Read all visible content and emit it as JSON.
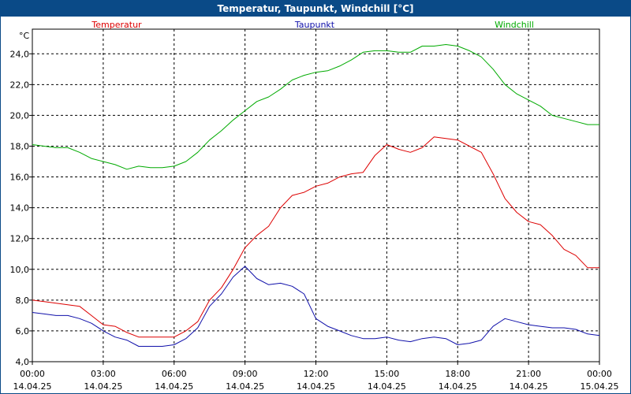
{
  "window": {
    "title": "Temperatur, Taupunkt, Windchill [°C]"
  },
  "chart_data": {
    "type": "line",
    "title": "Temperatur, Taupunkt, Windchill [°C]",
    "ylabel": "°C",
    "xlabel": "",
    "ylim": [
      4,
      25.6
    ],
    "xlim": [
      0,
      24
    ],
    "grid": true,
    "legend_position": "top",
    "y_ticks": [
      4,
      6,
      8,
      10,
      12,
      14,
      16,
      18,
      20,
      22,
      24
    ],
    "y_tick_labels": [
      "4,0",
      "6,0",
      "8,0",
      "10,0",
      "12,0",
      "14,0",
      "16,0",
      "18,0",
      "20,0",
      "22,0",
      "24,0"
    ],
    "x_ticks": [
      0,
      3,
      6,
      9,
      12,
      15,
      18,
      21,
      24
    ],
    "x_tick_labels": [
      {
        "time": "00:00",
        "date": "14.04.25"
      },
      {
        "time": "03:00",
        "date": "14.04.25"
      },
      {
        "time": "06:00",
        "date": "14.04.25"
      },
      {
        "time": "09:00",
        "date": "14.04.25"
      },
      {
        "time": "12:00",
        "date": "14.04.25"
      },
      {
        "time": "15:00",
        "date": "14.04.25"
      },
      {
        "time": "18:00",
        "date": "14.04.25"
      },
      {
        "time": "21:00",
        "date": "14.04.25"
      },
      {
        "time": "00:00",
        "date": "15.04.25"
      }
    ],
    "series": [
      {
        "name": "Temperatur",
        "color": "#dd0000",
        "x": [
          0,
          0.5,
          1,
          1.5,
          2,
          2.5,
          3,
          3.5,
          4,
          4.5,
          5,
          5.5,
          6,
          6.5,
          7,
          7.5,
          8,
          8.5,
          9,
          9.5,
          10,
          10.5,
          11,
          11.5,
          12,
          12.5,
          13,
          13.5,
          14,
          14.5,
          15,
          15.5,
          16,
          16.5,
          17,
          17.5,
          18,
          18.5,
          19,
          19.5,
          20,
          20.5,
          21,
          21.5,
          22,
          22.5,
          23,
          23.5,
          24
        ],
        "values": [
          8.0,
          7.9,
          7.8,
          7.7,
          7.6,
          7.0,
          6.4,
          6.3,
          5.9,
          5.6,
          5.6,
          5.6,
          5.6,
          6.0,
          6.6,
          8.0,
          8.8,
          10.0,
          11.4,
          12.2,
          12.8,
          14.0,
          14.8,
          15.0,
          15.4,
          15.6,
          16.0,
          16.2,
          16.3,
          17.4,
          18.1,
          17.8,
          17.6,
          17.9,
          18.6,
          18.5,
          18.4,
          18.0,
          17.6,
          16.2,
          14.6,
          13.7,
          13.1,
          12.9,
          12.2,
          11.3,
          10.9,
          10.1,
          10.1
        ]
      },
      {
        "name": "Taupunkt",
        "color": "#1010aa",
        "x": [
          0,
          0.5,
          1,
          1.5,
          2,
          2.5,
          3,
          3.5,
          4,
          4.5,
          5,
          5.5,
          6,
          6.5,
          7,
          7.5,
          8,
          8.5,
          9,
          9.5,
          10,
          10.5,
          11,
          11.5,
          12,
          12.5,
          13,
          13.5,
          14,
          14.5,
          15,
          15.5,
          16,
          16.5,
          17,
          17.5,
          18,
          18.5,
          19,
          19.5,
          20,
          20.5,
          21,
          21.5,
          22,
          22.5,
          23,
          23.5,
          24
        ],
        "values": [
          7.2,
          7.1,
          7.0,
          7.0,
          6.8,
          6.5,
          6.0,
          5.6,
          5.4,
          5.0,
          5.0,
          5.0,
          5.1,
          5.5,
          6.2,
          7.6,
          8.4,
          9.5,
          10.2,
          9.4,
          9.0,
          9.1,
          8.9,
          8.4,
          6.8,
          6.3,
          6.0,
          5.7,
          5.5,
          5.5,
          5.6,
          5.4,
          5.3,
          5.5,
          5.6,
          5.5,
          5.1,
          5.2,
          5.4,
          6.3,
          6.8,
          6.6,
          6.4,
          6.3,
          6.2,
          6.2,
          6.1,
          5.8,
          5.7
        ]
      },
      {
        "name": "Windchill",
        "color": "#00aa00",
        "x": [
          0,
          0.5,
          1,
          1.5,
          2,
          2.5,
          3,
          3.5,
          4,
          4.5,
          5,
          5.5,
          6,
          6.5,
          7,
          7.5,
          8,
          8.5,
          9,
          9.5,
          10,
          10.5,
          11,
          11.5,
          12,
          12.5,
          13,
          13.5,
          14,
          14.5,
          15,
          15.5,
          16,
          16.5,
          17,
          17.5,
          18,
          18.5,
          19,
          19.5,
          20,
          20.5,
          21,
          21.5,
          22,
          22.5,
          23,
          23.5,
          24
        ],
        "values": [
          18.1,
          18.0,
          17.9,
          17.9,
          17.6,
          17.2,
          17.0,
          16.8,
          16.5,
          16.7,
          16.6,
          16.6,
          16.7,
          17.0,
          17.6,
          18.4,
          19.0,
          19.7,
          20.3,
          20.9,
          21.2,
          21.7,
          22.3,
          22.6,
          22.8,
          22.9,
          23.2,
          23.6,
          24.1,
          24.2,
          24.2,
          24.1,
          24.1,
          24.5,
          24.5,
          24.6,
          24.5,
          24.2,
          23.8,
          23.0,
          22.0,
          21.4,
          21.0,
          20.6,
          20.0,
          19.8,
          19.6,
          19.4,
          19.4
        ]
      }
    ]
  }
}
